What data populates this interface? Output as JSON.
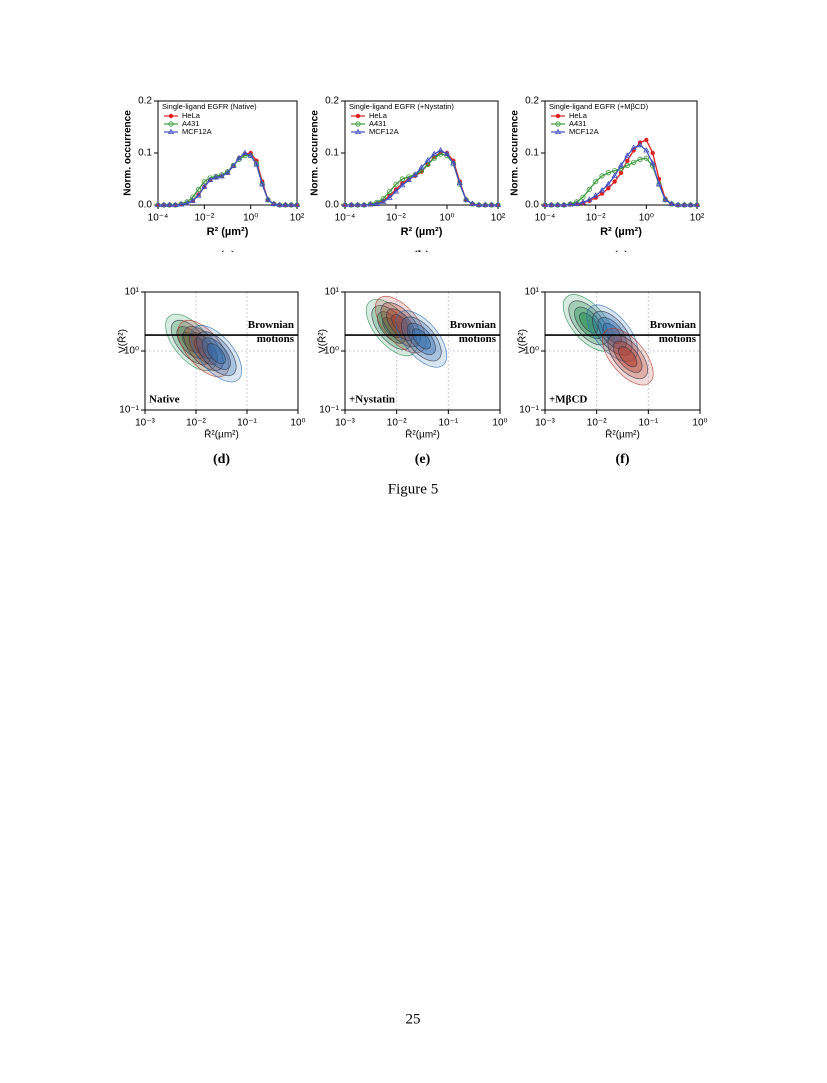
{
  "chart_data": [
    {
      "type": "line",
      "panel": "(a)",
      "legend_title": "Single-ligand EGFR (Native)",
      "xlabel": "R² (µm²)",
      "ylabel": "Norm. occurrence",
      "xscale": "log",
      "xlim": [
        0.0001,
        100
      ],
      "xticks": [
        {
          "value": 0.0001,
          "label": "10⁻⁴"
        },
        {
          "value": 0.01,
          "label": "10⁻²"
        },
        {
          "value": 1,
          "label": "10⁰"
        },
        {
          "value": 100,
          "label": "10²"
        }
      ],
      "ylim": [
        0,
        0.2
      ],
      "yticks": [
        {
          "value": 0,
          "label": "0.0"
        },
        {
          "value": 0.1,
          "label": "0.1"
        },
        {
          "value": 0.2,
          "label": "0.2"
        }
      ],
      "x": [
        0.0001,
        0.000178,
        0.000316,
        0.000562,
        0.001,
        0.00178,
        0.00316,
        0.00562,
        0.01,
        0.0178,
        0.0316,
        0.0562,
        0.1,
        0.178,
        0.316,
        0.562,
        1,
        1.78,
        3.16,
        5.62,
        10,
        17.8,
        31.6,
        56.2,
        100
      ],
      "series": [
        {
          "name": "HeLa",
          "color": "#e02020",
          "values": [
            0,
            0,
            0,
            0,
            0.001,
            0.003,
            0.008,
            0.02,
            0.035,
            0.048,
            0.053,
            0.056,
            0.062,
            0.075,
            0.09,
            0.098,
            0.1,
            0.085,
            0.045,
            0.01,
            0.002,
            0,
            0,
            0,
            0
          ]
        },
        {
          "name": "A431",
          "color": "#3a9a3a",
          "values": [
            0,
            0,
            0,
            0,
            0.002,
            0.006,
            0.015,
            0.03,
            0.045,
            0.052,
            0.055,
            0.058,
            0.064,
            0.076,
            0.088,
            0.095,
            0.095,
            0.08,
            0.04,
            0.01,
            0.002,
            0,
            0,
            0,
            0
          ]
        },
        {
          "name": "MCF12A",
          "color": "#4050c0",
          "values": [
            0,
            0,
            0,
            0,
            0.001,
            0.003,
            0.008,
            0.018,
            0.035,
            0.048,
            0.053,
            0.055,
            0.062,
            0.075,
            0.09,
            0.1,
            0.095,
            0.078,
            0.04,
            0.01,
            0.002,
            0,
            0,
            0,
            0
          ]
        }
      ]
    },
    {
      "type": "line",
      "panel": "(b)",
      "legend_title": "Single-ligand EGFR (+Nystatin)",
      "xlabel": "R² (µm²)",
      "ylabel": "Norm. occurrence",
      "xscale": "log",
      "xlim": [
        0.0001,
        100
      ],
      "xticks": [
        {
          "value": 0.0001,
          "label": "10⁻⁴"
        },
        {
          "value": 0.01,
          "label": "10⁻²"
        },
        {
          "value": 1,
          "label": "10⁰"
        },
        {
          "value": 100,
          "label": "10²"
        }
      ],
      "ylim": [
        0,
        0.2
      ],
      "yticks": [
        {
          "value": 0,
          "label": "0.0"
        },
        {
          "value": 0.1,
          "label": "0.1"
        },
        {
          "value": 0.2,
          "label": "0.2"
        }
      ],
      "x": [
        0.0001,
        0.000178,
        0.000316,
        0.000562,
        0.001,
        0.00178,
        0.00316,
        0.00562,
        0.01,
        0.0178,
        0.0316,
        0.0562,
        0.1,
        0.178,
        0.316,
        0.562,
        1,
        1.78,
        3.16,
        5.62,
        10,
        17.8,
        31.6,
        56.2,
        100
      ],
      "series": [
        {
          "name": "HeLa",
          "color": "#e02020",
          "values": [
            0,
            0,
            0,
            0,
            0.001,
            0.003,
            0.008,
            0.018,
            0.03,
            0.042,
            0.05,
            0.056,
            0.064,
            0.078,
            0.092,
            0.102,
            0.1,
            0.085,
            0.045,
            0.01,
            0.002,
            0,
            0,
            0,
            0
          ]
        },
        {
          "name": "A431",
          "color": "#3a9a3a",
          "values": [
            0,
            0,
            0,
            0,
            0.002,
            0.005,
            0.012,
            0.026,
            0.04,
            0.05,
            0.054,
            0.058,
            0.066,
            0.078,
            0.09,
            0.098,
            0.095,
            0.08,
            0.04,
            0.01,
            0.002,
            0,
            0,
            0,
            0
          ]
        },
        {
          "name": "MCF12A",
          "color": "#4050c0",
          "values": [
            0,
            0,
            0,
            0,
            0.001,
            0.002,
            0.006,
            0.014,
            0.026,
            0.038,
            0.048,
            0.058,
            0.072,
            0.086,
            0.098,
            0.105,
            0.098,
            0.08,
            0.042,
            0.01,
            0.002,
            0,
            0,
            0,
            0
          ]
        }
      ]
    },
    {
      "type": "line",
      "panel": "(c)",
      "legend_title": "Single-ligand EGFR (+MβCD)",
      "xlabel": "R² (µm²)",
      "ylabel": "Norm. occurrence",
      "xscale": "log",
      "xlim": [
        0.0001,
        100
      ],
      "xticks": [
        {
          "value": 0.0001,
          "label": "10⁻⁴"
        },
        {
          "value": 0.01,
          "label": "10⁻²"
        },
        {
          "value": 1,
          "label": "10⁰"
        },
        {
          "value": 100,
          "label": "10²"
        }
      ],
      "ylim": [
        0,
        0.2
      ],
      "yticks": [
        {
          "value": 0,
          "label": "0.0"
        },
        {
          "value": 0.1,
          "label": "0.1"
        },
        {
          "value": 0.2,
          "label": "0.2"
        }
      ],
      "x": [
        0.0001,
        0.000178,
        0.000316,
        0.000562,
        0.001,
        0.00178,
        0.00316,
        0.00562,
        0.01,
        0.0178,
        0.0316,
        0.0562,
        0.1,
        0.178,
        0.316,
        0.562,
        1,
        1.78,
        3.16,
        5.62,
        10,
        17.8,
        31.6,
        56.2,
        100
      ],
      "series": [
        {
          "name": "HeLa",
          "color": "#e02020",
          "values": [
            0,
            0,
            0,
            0,
            0.001,
            0.002,
            0.004,
            0.008,
            0.014,
            0.022,
            0.032,
            0.045,
            0.062,
            0.085,
            0.105,
            0.12,
            0.125,
            0.1,
            0.05,
            0.012,
            0.002,
            0,
            0,
            0,
            0
          ]
        },
        {
          "name": "A431",
          "color": "#3a9a3a",
          "values": [
            0,
            0,
            0,
            0,
            0.002,
            0.006,
            0.015,
            0.03,
            0.045,
            0.056,
            0.062,
            0.066,
            0.07,
            0.076,
            0.082,
            0.088,
            0.09,
            0.075,
            0.04,
            0.01,
            0.002,
            0,
            0,
            0,
            0
          ]
        },
        {
          "name": "MCF12A",
          "color": "#4050c0",
          "values": [
            0,
            0,
            0,
            0,
            0.001,
            0.002,
            0.005,
            0.01,
            0.018,
            0.028,
            0.04,
            0.056,
            0.076,
            0.095,
            0.11,
            0.115,
            0.105,
            0.08,
            0.04,
            0.01,
            0.002,
            0,
            0,
            0,
            0
          ]
        }
      ]
    },
    {
      "type": "contour",
      "panel": "(d)",
      "annotation": "Native",
      "brownian_label": "Brownian motions",
      "brownian_level": 1.86,
      "xlabel": "R̄²(µm²)",
      "ylabel": "V(R̄²)",
      "xscale": "log",
      "yscale": "log",
      "xlim": [
        0.001,
        1
      ],
      "xticks": [
        {
          "value": 0.001,
          "label": "10⁻³"
        },
        {
          "value": 0.01,
          "label": "10⁻²"
        },
        {
          "value": 0.1,
          "label": "10⁻¹"
        },
        {
          "value": 1,
          "label": "10⁰"
        }
      ],
      "ylim": [
        0.1,
        10
      ],
      "yticks": [
        {
          "value": 0.1,
          "label": "10⁻¹"
        },
        {
          "value": 1,
          "label": "10⁰"
        },
        {
          "value": 10,
          "label": "10¹"
        }
      ],
      "series": [
        {
          "color": "#1f8a4c",
          "x": [
            0.008
          ],
          "values": [
            1.4
          ]
        },
        {
          "color": "#b03a2a",
          "x": [
            0.014
          ],
          "values": [
            1.1
          ]
        },
        {
          "color": "#2a6db0",
          "x": [
            0.025
          ],
          "values": [
            0.9
          ]
        }
      ]
    },
    {
      "type": "contour",
      "panel": "(e)",
      "annotation": "+Nystatin",
      "brownian_label": "Brownian motions",
      "brownian_level": 1.86,
      "xlabel": "R̄²(µm²)",
      "ylabel": "V(R̄²)",
      "xscale": "log",
      "yscale": "log",
      "xlim": [
        0.001,
        1
      ],
      "xticks": [
        {
          "value": 0.001,
          "label": "10⁻³"
        },
        {
          "value": 0.01,
          "label": "10⁻²"
        },
        {
          "value": 0.1,
          "label": "10⁻¹"
        },
        {
          "value": 1,
          "label": "10⁰"
        }
      ],
      "ylim": [
        0.1,
        10
      ],
      "yticks": [
        {
          "value": 0.1,
          "label": "10⁻¹"
        },
        {
          "value": 1,
          "label": "10⁰"
        },
        {
          "value": 10,
          "label": "10¹"
        }
      ],
      "series": [
        {
          "color": "#1f8a4c",
          "x": [
            0.008
          ],
          "values": [
            2.5
          ]
        },
        {
          "color": "#b03a2a",
          "x": [
            0.012
          ],
          "values": [
            2.8
          ]
        },
        {
          "color": "#2a6db0",
          "x": [
            0.03
          ],
          "values": [
            1.6
          ]
        }
      ]
    },
    {
      "type": "contour",
      "panel": "(f)",
      "annotation": "+MβCD",
      "brownian_label": "Brownian motions",
      "brownian_level": 1.86,
      "xlabel": "R̄²(µm²)",
      "ylabel": "V(R̄²)",
      "xscale": "log",
      "yscale": "log",
      "xlim": [
        0.001,
        1
      ],
      "xticks": [
        {
          "value": 0.001,
          "label": "10⁻³"
        },
        {
          "value": 0.01,
          "label": "10⁻²"
        },
        {
          "value": 0.1,
          "label": "10⁻¹"
        },
        {
          "value": 1,
          "label": "10⁰"
        }
      ],
      "ylim": [
        0.1,
        10
      ],
      "yticks": [
        {
          "value": 0.1,
          "label": "10⁻¹"
        },
        {
          "value": 1,
          "label": "10⁰"
        },
        {
          "value": 10,
          "label": "10¹"
        }
      ],
      "series": [
        {
          "color": "#1f8a4c",
          "x": [
            0.007
          ],
          "values": [
            3
          ]
        },
        {
          "color": "#2a6db0",
          "x": [
            0.02
          ],
          "values": [
            2
          ]
        },
        {
          "color": "#b03a2a",
          "x": [
            0.04
          ],
          "values": [
            0.8
          ]
        }
      ]
    }
  ],
  "figure_caption": "Figure 5",
  "page_number": "25"
}
